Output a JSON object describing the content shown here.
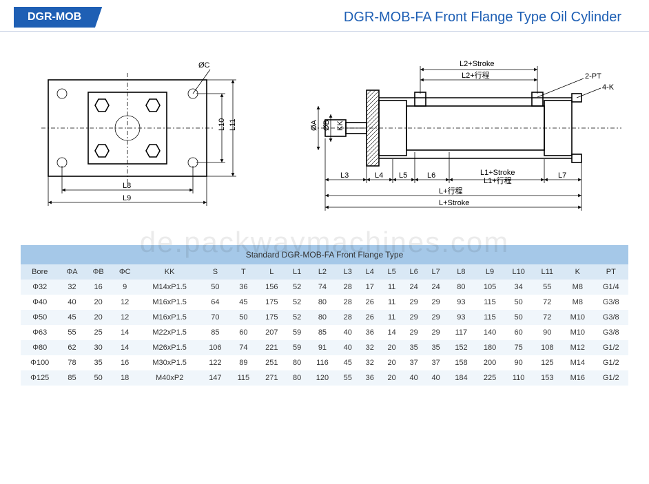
{
  "header": {
    "badge": "DGR-MOB",
    "title": "DGR-MOB-FA Front Flange Type Oil Cylinder"
  },
  "diagram": {
    "left": {
      "labels": {
        "phiC": "ØC",
        "L8": "L8",
        "L9": "L9",
        "L10": "L10",
        "L11": "L11"
      }
    },
    "right": {
      "labels": {
        "L2Stroke": "L2+Stroke",
        "L2StrokeCn": "L2+行程",
        "2PT": "2-PT",
        "4K": "4-K",
        "phiA": "ØA",
        "phiB": "ØB",
        "KK": "KK",
        "L3": "L3",
        "L4": "L4",
        "L5": "L5",
        "L6": "L6",
        "L1Stroke": "L1+Stroke",
        "L1StrokeCn": "L1+行程",
        "L7": "L7",
        "LStrokeCn": "L+行程",
        "LStroke": "L+Stroke"
      }
    }
  },
  "table": {
    "title": "Standard DGR-MOB-FA Front Flange Type",
    "columns": [
      "Bore",
      "ΦA",
      "ΦB",
      "ΦC",
      "KK",
      "S",
      "T",
      "L",
      "L1",
      "L2",
      "L3",
      "L4",
      "L5",
      "L6",
      "L7",
      "L8",
      "L9",
      "L10",
      "L11",
      "K",
      "PT"
    ],
    "rows": [
      [
        "Φ32",
        "32",
        "16",
        "9",
        "M14xP1.5",
        "50",
        "36",
        "156",
        "52",
        "74",
        "28",
        "17",
        "11",
        "24",
        "24",
        "80",
        "105",
        "34",
        "55",
        "M8",
        "G1/4"
      ],
      [
        "Φ40",
        "40",
        "20",
        "12",
        "M16xP1.5",
        "64",
        "45",
        "175",
        "52",
        "80",
        "28",
        "26",
        "11",
        "29",
        "29",
        "93",
        "115",
        "50",
        "72",
        "M8",
        "G3/8"
      ],
      [
        "Φ50",
        "45",
        "20",
        "12",
        "M16xP1.5",
        "70",
        "50",
        "175",
        "52",
        "80",
        "28",
        "26",
        "11",
        "29",
        "29",
        "93",
        "115",
        "50",
        "72",
        "M10",
        "G3/8"
      ],
      [
        "Φ63",
        "55",
        "25",
        "14",
        "M22xP1.5",
        "85",
        "60",
        "207",
        "59",
        "85",
        "40",
        "36",
        "14",
        "29",
        "29",
        "117",
        "140",
        "60",
        "90",
        "M10",
        "G3/8"
      ],
      [
        "Φ80",
        "62",
        "30",
        "14",
        "M26xP1.5",
        "106",
        "74",
        "221",
        "59",
        "91",
        "40",
        "32",
        "20",
        "35",
        "35",
        "152",
        "180",
        "75",
        "108",
        "M12",
        "G1/2"
      ],
      [
        "Φ100",
        "78",
        "35",
        "16",
        "M30xP1.5",
        "122",
        "89",
        "251",
        "80",
        "116",
        "45",
        "32",
        "20",
        "37",
        "37",
        "158",
        "200",
        "90",
        "125",
        "M14",
        "G1/2"
      ],
      [
        "Φ125",
        "85",
        "50",
        "18",
        "M40xP2",
        "147",
        "115",
        "271",
        "80",
        "120",
        "55",
        "36",
        "20",
        "40",
        "40",
        "184",
        "225",
        "110",
        "153",
        "M16",
        "G1/2"
      ]
    ],
    "colors": {
      "title_bg": "#a5c8e8",
      "head_bg": "#d9e8f5",
      "row_odd_bg": "#f0f6fb",
      "row_even_bg": "#ffffff"
    }
  },
  "watermark": "de.packwaymachines.com"
}
